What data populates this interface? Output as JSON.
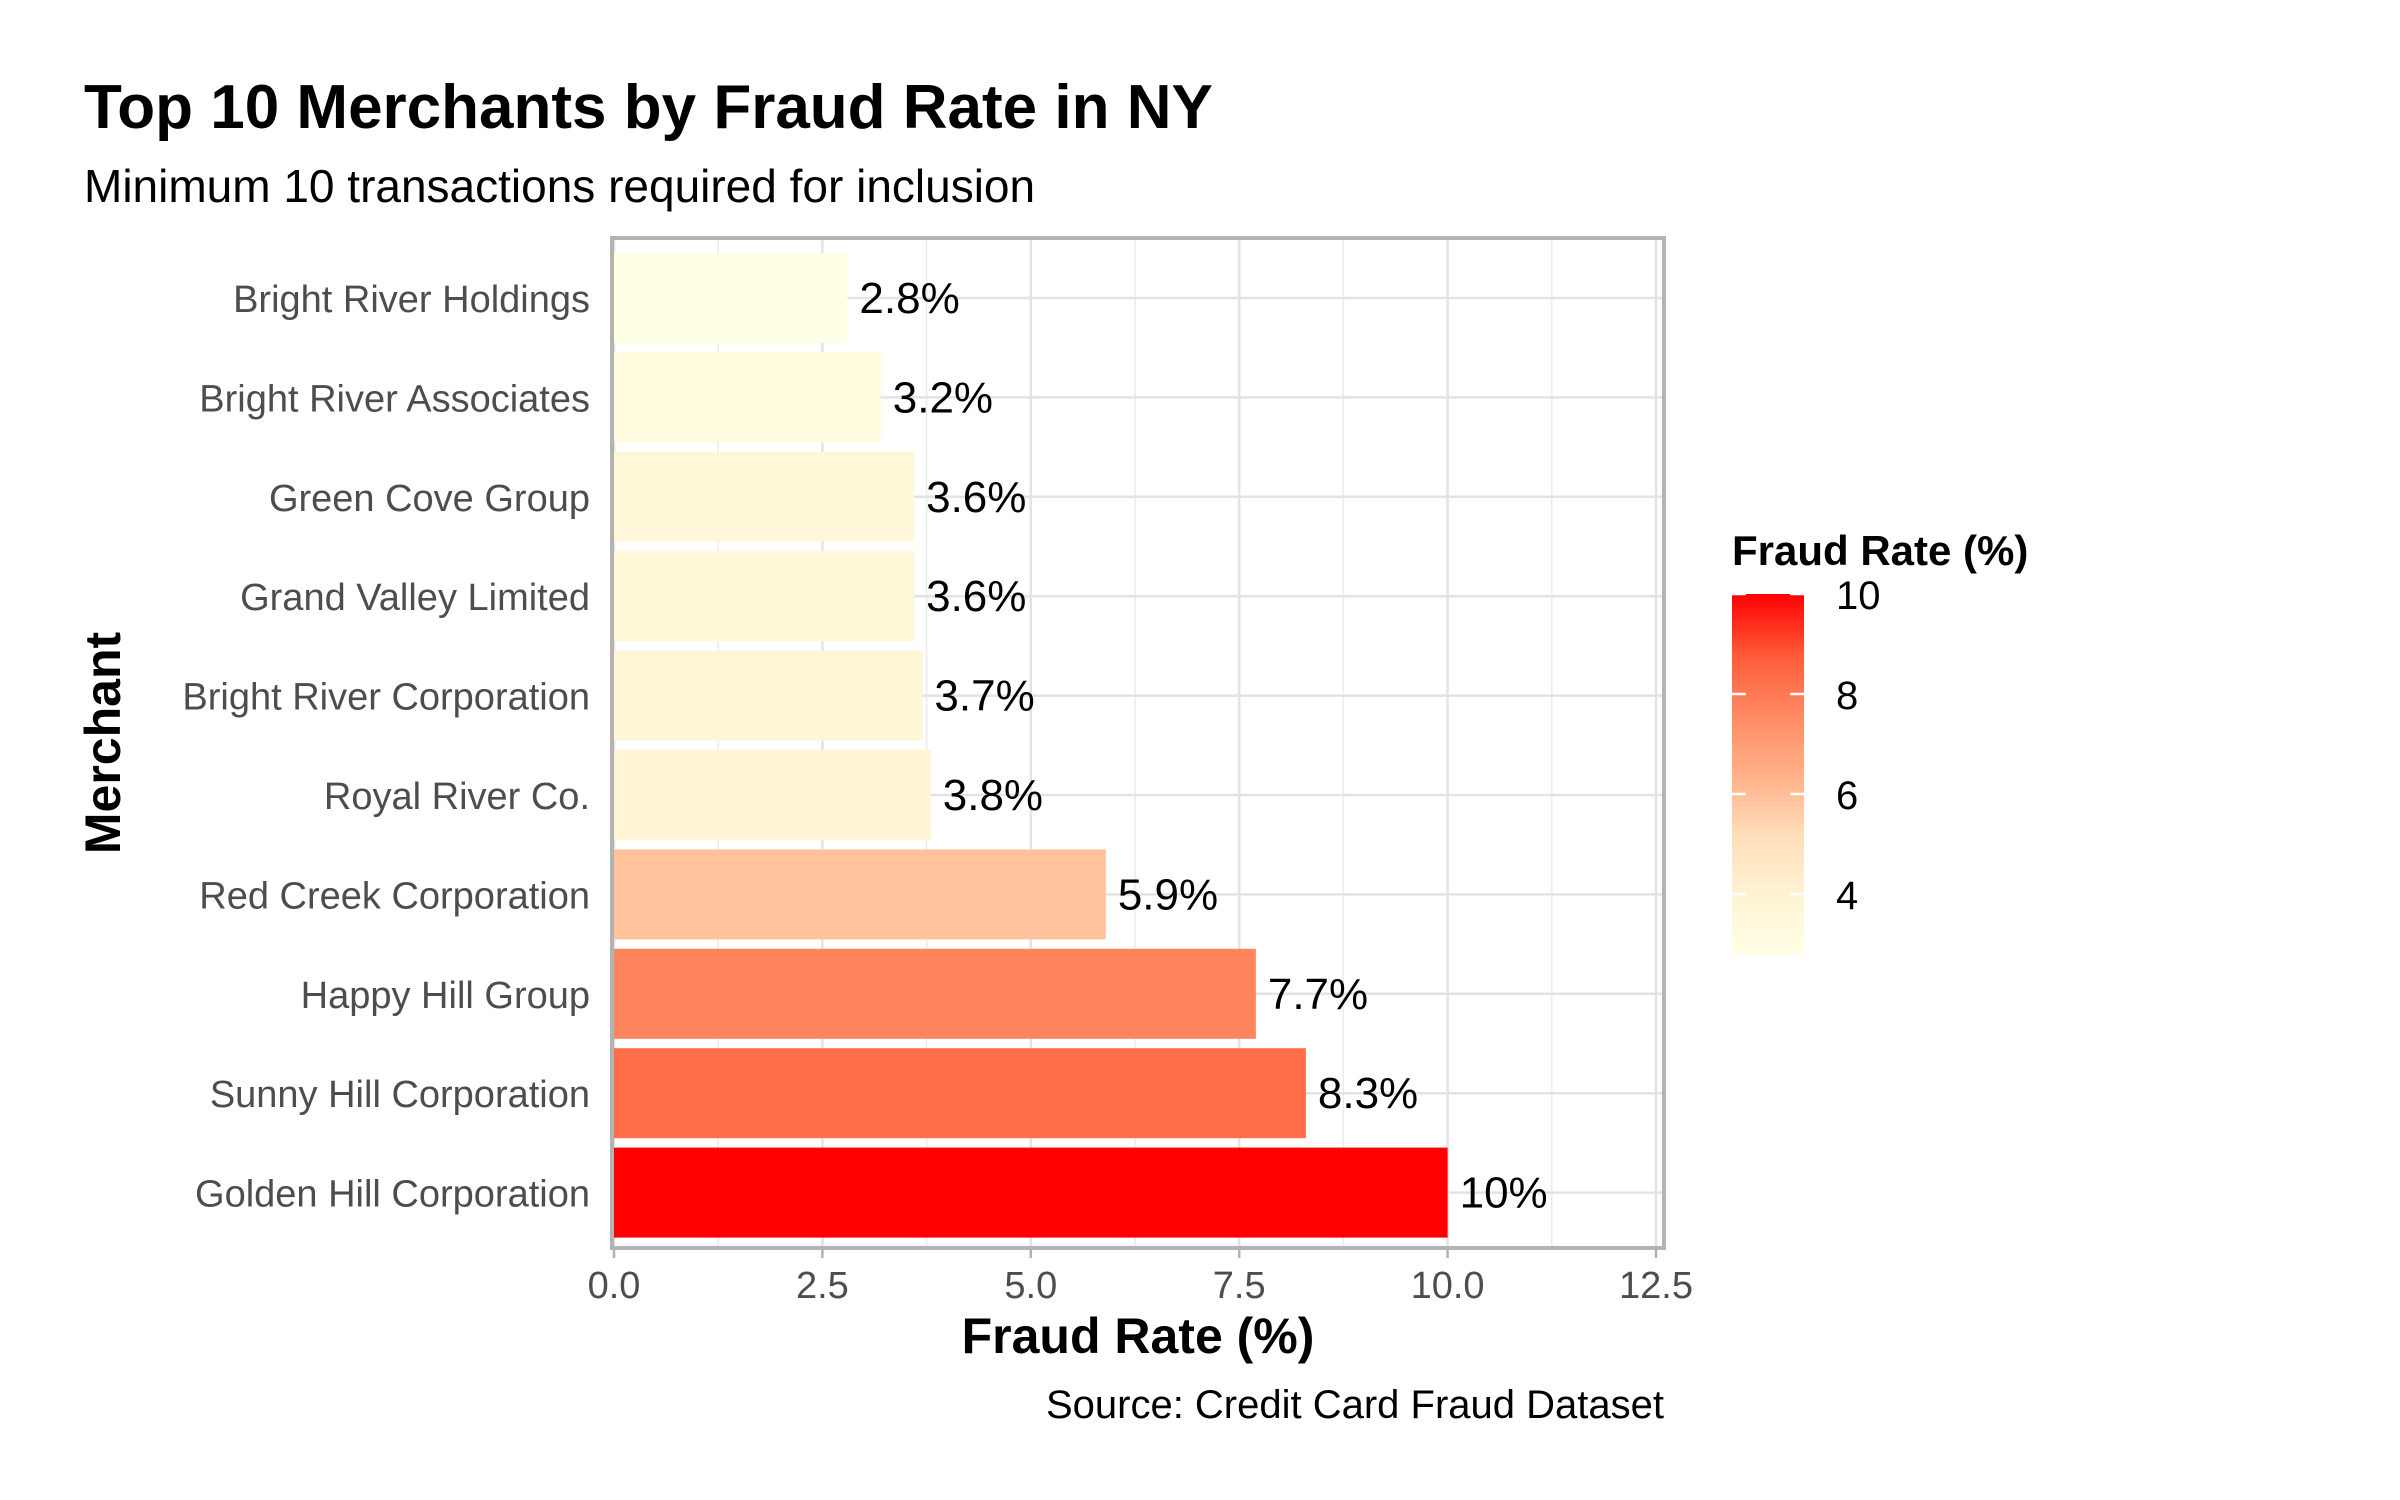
{
  "chart_data": {
    "type": "bar",
    "orientation": "horizontal",
    "title": "Top 10 Merchants by Fraud Rate in NY",
    "subtitle": "Minimum 10 transactions required for inclusion",
    "caption": "Source: Credit Card Fraud Dataset",
    "xlabel": "Fraud Rate (%)",
    "ylabel": "Merchant",
    "xlim": [
      0,
      12.5
    ],
    "x_ticks": [
      "0.0",
      "2.5",
      "5.0",
      "7.5",
      "10.0",
      "12.5"
    ],
    "x_tick_values": [
      0,
      2.5,
      5,
      7.5,
      10,
      12.5
    ],
    "grid": true,
    "categories": [
      "Bright River Holdings",
      "Bright River Associates",
      "Green Cove Group",
      "Grand Valley Limited",
      "Bright River Corporation",
      "Royal River Co.",
      "Red Creek Corporation",
      "Happy Hill Group",
      "Sunny Hill Corporation",
      "Golden Hill Corporation"
    ],
    "values": [
      2.8,
      3.2,
      3.6,
      3.6,
      3.7,
      3.8,
      5.9,
      7.7,
      8.3,
      10.0
    ],
    "labels": [
      "2.8%",
      "3.2%",
      "3.6%",
      "3.6%",
      "3.7%",
      "3.8%",
      "5.9%",
      "7.7%",
      "8.3%",
      "10%"
    ],
    "legend": {
      "title": "Fraud Rate (%)",
      "placement": "right",
      "type": "colorbar",
      "range": [
        2.8,
        10
      ],
      "ticks": [
        "4",
        "6",
        "8",
        "10"
      ],
      "tick_values": [
        4,
        6,
        8,
        10
      ],
      "color_low": "#FFFFE5",
      "color_high": "#FF0000"
    }
  }
}
